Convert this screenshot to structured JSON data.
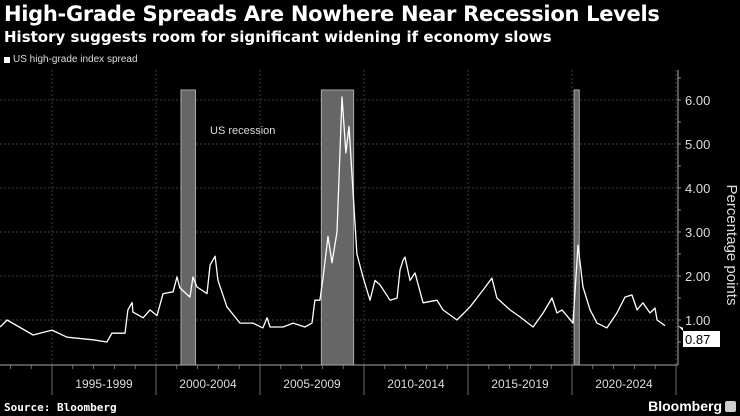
{
  "header": {
    "title": "High-Grade Spreads Are Nowhere Near Recession Levels",
    "subtitle": "History suggests room for significant widening if economy slows"
  },
  "footer": {
    "source": "Source: Bloomberg",
    "brand": "Bloomberg"
  },
  "chart_data": {
    "type": "line",
    "title": "High-Grade Spreads Are Nowhere Near Recession Levels",
    "subtitle": "History suggests room for significant widening if economy slows",
    "ylabel": "Percentage points",
    "xlabel": "",
    "ylim": [
      0,
      6.5
    ],
    "xlim": [
      1992.5,
      2025
    ],
    "yticks": [
      "1.00",
      "2.00",
      "3.00",
      "4.00",
      "5.00",
      "6.00"
    ],
    "ytick_values": [
      1,
      2,
      3,
      4,
      5,
      6
    ],
    "xtick_labels": [
      "1995-1999",
      "2000-2004",
      "2005-2009",
      "2010-2014",
      "2015-2019",
      "2020-2024"
    ],
    "xtick_periods": [
      [
        1995,
        2000
      ],
      [
        2000,
        2005
      ],
      [
        2005,
        2010
      ],
      [
        2010,
        2015
      ],
      [
        2015,
        2020
      ],
      [
        2020,
        2025
      ]
    ],
    "grid": true,
    "legend": {
      "placement": "top-left",
      "entries": [
        "US high-grade index spread"
      ]
    },
    "annotation": "US recession",
    "last_value_label": "0.87",
    "recessions": [
      [
        2001.2,
        2001.9
      ],
      [
        2007.95,
        2009.5
      ],
      [
        2020.1,
        2020.35
      ]
    ],
    "series": [
      {
        "name": "US high-grade index spread",
        "color": "#ffffff",
        "x": [
          1992.5,
          1992.84,
          1994.09,
          1995.0,
          1995.72,
          1996.97,
          1997.64,
          1997.88,
          1998.51,
          1998.65,
          1998.85,
          1998.89,
          1999.38,
          1999.71,
          2000.05,
          2000.34,
          2000.82,
          2001.01,
          2001.15,
          2001.63,
          2001.78,
          2001.97,
          2002.45,
          2002.6,
          2002.84,
          2002.98,
          2003.41,
          2004.04,
          2004.66,
          2005.14,
          2005.34,
          2005.48,
          2006.11,
          2006.59,
          2007.16,
          2007.5,
          2007.64,
          2007.88,
          2008.03,
          2008.27,
          2008.46,
          2008.7,
          2008.94,
          2009.13,
          2009.28,
          2009.66,
          2009.95,
          2010.14,
          2010.29,
          2010.53,
          2010.77,
          2011.25,
          2011.59,
          2011.73,
          2011.88,
          2011.97,
          2012.21,
          2012.45,
          2012.84,
          2013.51,
          2013.8,
          2014.47,
          2015.1,
          2015.72,
          2016.15,
          2016.39,
          2017.02,
          2017.5,
          2018.13,
          2018.61,
          2019.04,
          2019.28,
          2019.52,
          2020.05,
          2020.29,
          2020.53,
          2020.87,
          2021.2,
          2021.68,
          2022.16,
          2022.55,
          2022.88,
          2023.13,
          2023.41,
          2023.75,
          2023.99,
          2024.09,
          2024.47
        ],
        "y": [
          0.84,
          1.0,
          0.66,
          0.77,
          0.61,
          0.55,
          0.5,
          0.7,
          0.7,
          1.23,
          1.4,
          1.18,
          1.05,
          1.23,
          1.1,
          1.6,
          1.64,
          1.98,
          1.73,
          1.52,
          1.98,
          1.75,
          1.6,
          2.25,
          2.45,
          1.9,
          1.3,
          0.93,
          0.93,
          0.82,
          1.05,
          0.84,
          0.84,
          0.93,
          0.84,
          0.93,
          1.45,
          1.45,
          1.95,
          2.9,
          2.3,
          3.0,
          6.07,
          4.8,
          5.4,
          2.5,
          1.98,
          1.68,
          1.45,
          1.9,
          1.8,
          1.45,
          1.5,
          2.14,
          2.36,
          2.43,
          1.9,
          2.07,
          1.39,
          1.45,
          1.23,
          1.0,
          1.3,
          1.68,
          1.95,
          1.5,
          1.23,
          1.07,
          0.84,
          1.16,
          1.5,
          1.16,
          1.23,
          0.93,
          2.7,
          1.75,
          1.23,
          0.93,
          0.82,
          1.16,
          1.52,
          1.57,
          1.23,
          1.39,
          1.16,
          1.27,
          1.0,
          0.87
        ]
      }
    ]
  }
}
